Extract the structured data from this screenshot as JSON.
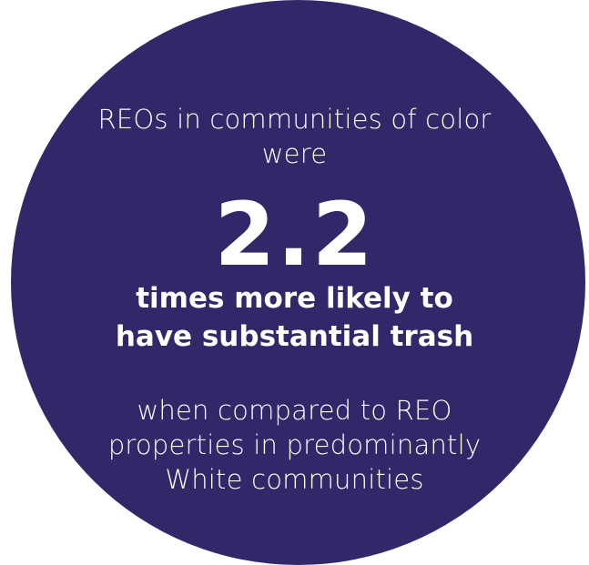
{
  "circle_color": "#302869",
  "text_color": "#ffffff",
  "intro": {
    "line1": "REOs in communities of color",
    "line2": "were"
  },
  "stat": {
    "value": "2.2",
    "line1": "times more likely to",
    "line2": "have substantial trash"
  },
  "outro": {
    "line1": "when compared to REO",
    "line2": "properties in predominantly",
    "line3": "White communities"
  }
}
